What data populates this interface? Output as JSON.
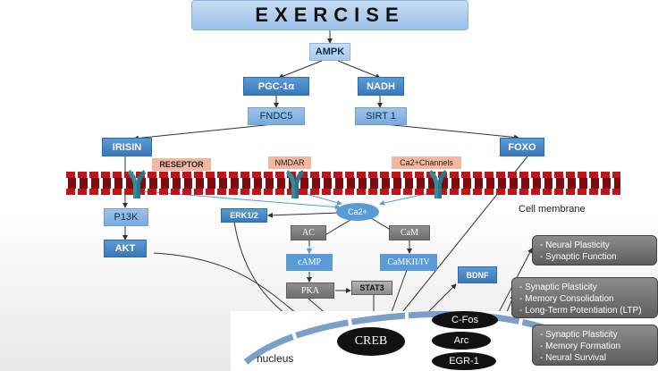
{
  "title": "EXERCISE",
  "nodes": {
    "ampk": "AMPK",
    "pgc1a": "PGC-1α",
    "nadh": "NADH",
    "fndc5": "FNDC5",
    "sirt1": "SIRT 1",
    "irisin": "IRISIN",
    "foxo": "FOXO",
    "reseptor": "RESEPTOR",
    "nmdar": "NMDAR",
    "ca2_channels": "Ca2+Channels",
    "p13k": "P13K",
    "akt": "AKT",
    "erk12": "ERK1/2",
    "ca2": "Ca2+",
    "ac": "AC",
    "cam": "CaM",
    "camp": "cAMP",
    "camkii": "CaMKII/IV",
    "pka": "PKA",
    "stat3": "STAT3",
    "bdnf": "BDNF",
    "creb": "CREB",
    "cfos": "C-Fos",
    "arc": "Arc",
    "egr1": "EGR-1"
  },
  "labels": {
    "cell_membrane": "Cell membrane",
    "nucleus": "nucleus"
  },
  "outcomes": {
    "cfos": [
      "- Neural Plasticity",
      "- Synaptic Function"
    ],
    "arc": [
      "- Synaptic Plasticity",
      "- Memory Consolidation",
      "- Long-Term Potentiation (LTP)"
    ],
    "egr1": [
      "- Synaptic Plasticity",
      "- Memory Formation",
      "- Neural Survival"
    ]
  },
  "colors": {
    "membrane": "#c0141a",
    "channel": "#2f8fa0",
    "arrow": "#333333",
    "ca_arrow": "#5b9bd5"
  }
}
